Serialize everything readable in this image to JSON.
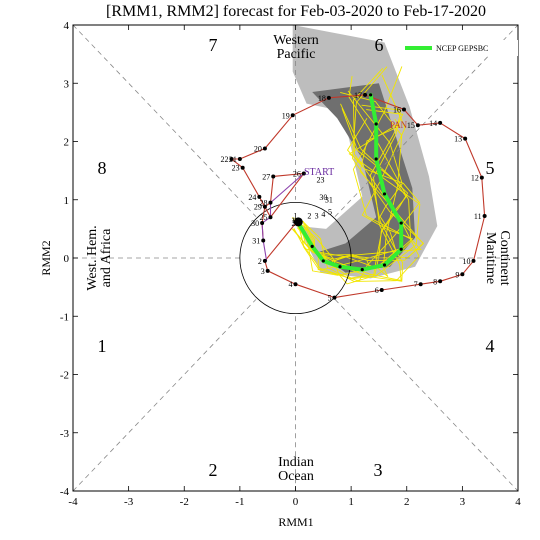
{
  "chart_data": {
    "type": "line",
    "title": "[RMM1, RMM2] forecast for Feb-03-2020 to Feb-17-2020",
    "xlabel": "RMM1",
    "ylabel": "RMM2",
    "xlim": [
      -4,
      4
    ],
    "ylim": [
      -4,
      4
    ],
    "xticks": [
      "-4",
      "-3",
      "-2",
      "-1",
      "0",
      "1",
      "2",
      "3",
      "4"
    ],
    "yticks": [
      "-4",
      "-3",
      "-2",
      "-1",
      "0",
      "1",
      "2",
      "3",
      "4"
    ],
    "phase_numbers": [
      "1",
      "2",
      "3",
      "4",
      "5",
      "6",
      "7",
      "8"
    ],
    "regions": {
      "top_line1": "Western",
      "top_line2": "Pacific",
      "bottom_line1": "Indian",
      "bottom_line2": "Ocean",
      "left_line1": "West. Hem.",
      "left_line2": "and Africa",
      "right_line1": "Maritime",
      "right_line2": "Continent"
    },
    "start_label": "START",
    "pan_label": "PAN",
    "legend": [
      {
        "name": "NCEP GEPSBC",
        "color": "#33ee33"
      }
    ],
    "colors": {
      "observed": "#c0392b",
      "recent": "#8e44ad",
      "ensemble": "#f2e600",
      "ensemble_mean": "#33ee33",
      "spread_outer": "#bdbdbd",
      "spread_inner": "#6f6f6f"
    },
    "observed_series": [
      {
        "day": "1",
        "x": 0.05,
        "y": 0.65
      },
      {
        "day": "2",
        "x": -0.55,
        "y": -0.05
      },
      {
        "day": "3",
        "x": -0.5,
        "y": -0.22
      },
      {
        "day": "4",
        "x": 0.0,
        "y": -0.45
      },
      {
        "day": "5",
        "x": 0.7,
        "y": -0.68
      },
      {
        "day": "6",
        "x": 1.55,
        "y": -0.55
      },
      {
        "day": "7",
        "x": 2.25,
        "y": -0.45
      },
      {
        "day": "8",
        "x": 2.6,
        "y": -0.4
      },
      {
        "day": "9",
        "x": 3.0,
        "y": -0.28
      },
      {
        "day": "10",
        "x": 3.2,
        "y": -0.05
      },
      {
        "day": "11",
        "x": 3.4,
        "y": 0.72
      },
      {
        "day": "12",
        "x": 3.35,
        "y": 1.38
      },
      {
        "day": "13",
        "x": 3.05,
        "y": 2.05
      },
      {
        "day": "14",
        "x": 2.6,
        "y": 2.32
      },
      {
        "day": "15",
        "x": 2.2,
        "y": 2.28
      },
      {
        "day": "16",
        "x": 1.95,
        "y": 2.55
      },
      {
        "day": "17",
        "x": 1.25,
        "y": 2.8
      },
      {
        "day": "18",
        "x": 0.6,
        "y": 2.75
      },
      {
        "day": "19",
        "x": -0.05,
        "y": 2.45
      },
      {
        "day": "20",
        "x": -0.55,
        "y": 1.88
      },
      {
        "day": "21",
        "x": -1.0,
        "y": 1.7
      },
      {
        "day": "22",
        "x": -1.15,
        "y": 1.7
      },
      {
        "day": "23",
        "x": -0.95,
        "y": 1.55
      },
      {
        "day": "24",
        "x": -0.65,
        "y": 1.05
      },
      {
        "day": "25",
        "x": -0.45,
        "y": 0.7
      },
      {
        "day": "26",
        "x": 0.15,
        "y": 1.45
      },
      {
        "day": "27",
        "x": -0.4,
        "y": 1.4
      },
      {
        "day": "28",
        "x": -0.45,
        "y": 0.95
      },
      {
        "day": "29",
        "x": -0.55,
        "y": 0.88
      },
      {
        "day": "30",
        "x": -0.6,
        "y": 0.6
      },
      {
        "day": "31",
        "x": -0.58,
        "y": 0.3
      }
    ],
    "observed_path": [
      "1",
      "2",
      "3",
      "4",
      "5",
      "6",
      "7",
      "8",
      "9",
      "10",
      "11",
      "12",
      "13",
      "14",
      "15",
      "16",
      "17",
      "18",
      "19",
      "20",
      "21",
      "22",
      "23",
      "24",
      "25",
      "26",
      "27",
      "28",
      "29",
      "30",
      "31"
    ],
    "recent_series": [
      {
        "day": "26",
        "x": 0.15,
        "y": 1.45
      },
      {
        "day": "28",
        "x": -0.45,
        "y": 0.95
      },
      {
        "day": "25",
        "x": -0.45,
        "y": 0.7
      },
      {
        "day": "30",
        "x": -0.6,
        "y": 0.6
      },
      {
        "day": "31",
        "x": -0.58,
        "y": 0.3
      },
      {
        "day": "1",
        "x": -0.52,
        "y": -0.05
      }
    ],
    "forecast_day_labels": [
      {
        "day": "23",
        "x": 0.45,
        "y": 1.3
      },
      {
        "day": "30",
        "x": 0.5,
        "y": 1.0
      },
      {
        "day": "31",
        "x": 0.6,
        "y": 0.95
      },
      {
        "day": "1",
        "x": 0.0,
        "y": 0.68
      },
      {
        "day": "2",
        "x": 0.25,
        "y": 0.68
      },
      {
        "day": "3",
        "x": 0.38,
        "y": 0.68
      },
      {
        "day": "4",
        "x": 0.5,
        "y": 0.7
      },
      {
        "day": "5",
        "x": 0.62,
        "y": 0.75
      },
      {
        "day": "26",
        "x": 0.0,
        "y": 0.55
      }
    ],
    "ensemble_mean": [
      {
        "x": 0.05,
        "y": 0.6
      },
      {
        "x": 0.3,
        "y": 0.2
      },
      {
        "x": 0.5,
        "y": -0.05
      },
      {
        "x": 0.8,
        "y": -0.15
      },
      {
        "x": 1.2,
        "y": -0.2
      },
      {
        "x": 1.6,
        "y": -0.12
      },
      {
        "x": 1.9,
        "y": 0.15
      },
      {
        "x": 1.9,
        "y": 0.6
      },
      {
        "x": 1.6,
        "y": 1.1
      },
      {
        "x": 1.45,
        "y": 1.7
      },
      {
        "x": 1.45,
        "y": 2.3
      },
      {
        "x": 1.35,
        "y": 2.8
      }
    ],
    "spread_outer": [
      {
        "x": -0.05,
        "y": 4.0
      },
      {
        "x": 1.6,
        "y": 3.7
      },
      {
        "x": 2.05,
        "y": 2.6
      },
      {
        "x": 2.4,
        "y": 1.4
      },
      {
        "x": 2.55,
        "y": 0.55
      },
      {
        "x": 2.15,
        "y": -0.15
      },
      {
        "x": 1.35,
        "y": -0.35
      },
      {
        "x": 0.45,
        "y": -0.25
      },
      {
        "x": 0.05,
        "y": 0.55
      },
      {
        "x": 0.55,
        "y": 0.5
      },
      {
        "x": 1.2,
        "y": 1.05
      },
      {
        "x": 0.95,
        "y": 2.1
      },
      {
        "x": 0.7,
        "y": 2.55
      },
      {
        "x": 0.2,
        "y": 2.65
      },
      {
        "x": -0.05,
        "y": 3.2
      }
    ],
    "spread_inner": [
      {
        "x": 0.3,
        "y": 2.85
      },
      {
        "x": 1.5,
        "y": 3.0
      },
      {
        "x": 1.75,
        "y": 2.25
      },
      {
        "x": 2.1,
        "y": 1.2
      },
      {
        "x": 2.15,
        "y": 0.35
      },
      {
        "x": 1.7,
        "y": -0.15
      },
      {
        "x": 0.9,
        "y": -0.25
      },
      {
        "x": 0.4,
        "y": 0.1
      },
      {
        "x": 0.9,
        "y": 0.25
      },
      {
        "x": 1.45,
        "y": 0.7
      },
      {
        "x": 1.2,
        "y": 1.7
      },
      {
        "x": 0.75,
        "y": 2.4
      }
    ]
  }
}
